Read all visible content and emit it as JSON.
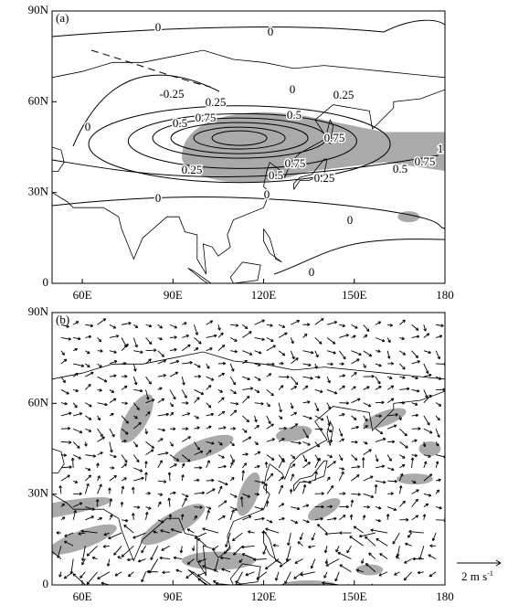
{
  "panels": [
    {
      "label": "(a)",
      "xticks": [
        {
          "value": 60,
          "label": "60E"
        },
        {
          "value": 90,
          "label": "90E"
        },
        {
          "value": 120,
          "label": "120E"
        },
        {
          "value": 150,
          "label": "150E"
        },
        180
      ],
      "yticks": [
        0,
        {
          "value": 30,
          "label": "30N"
        },
        {
          "value": 60,
          "label": "60N"
        },
        {
          "value": 90,
          "label": "90N"
        }
      ],
      "contour_labels": [
        0,
        0,
        -0.25,
        0.25,
        0,
        0.25,
        0,
        0.5,
        0.75,
        0.5,
        0.75,
        1,
        0.75,
        0.5,
        0.75,
        0.25,
        0.5,
        0.25,
        0,
        0,
        0,
        0
      ]
    },
    {
      "label": "(b)",
      "xticks": [
        {
          "value": 60,
          "label": "60E"
        },
        {
          "value": 90,
          "label": "90E"
        },
        {
          "value": 120,
          "label": "120E"
        },
        {
          "value": 150,
          "label": "150E"
        },
        180
      ],
      "yticks": [
        0,
        {
          "value": 30,
          "label": "30N"
        },
        {
          "value": 60,
          "label": "60N"
        },
        {
          "value": 90,
          "label": "90N"
        }
      ],
      "reference_vector": {
        "text": "2 m s",
        "superscript": "-1"
      }
    }
  ]
}
